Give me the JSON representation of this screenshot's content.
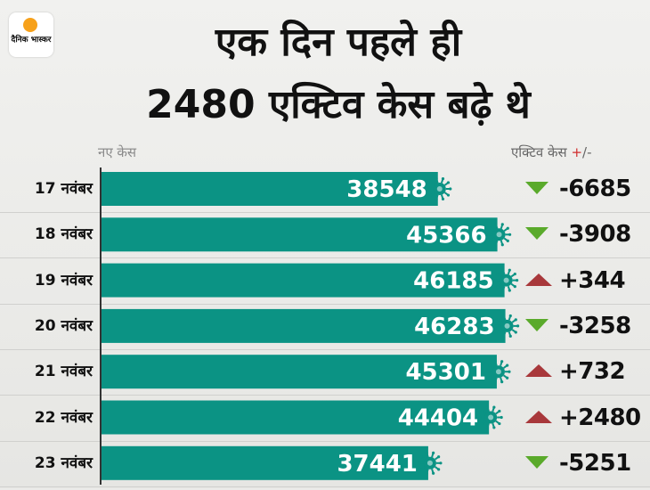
{
  "logo": {
    "text": "दैनिक भास्कर"
  },
  "title_lines": [
    "एक दिन पहले ही",
    "2480 एक्टिव केस बढ़े थे"
  ],
  "header": {
    "left": "नए केस",
    "right": "एक्टिव केस",
    "right_plus": "+",
    "right_sep": "/",
    "right_minus": "-"
  },
  "colors": {
    "bar": "#0b9384",
    "up": "#a8383b",
    "down": "#5aaa2b"
  },
  "chart_data": {
    "type": "bar",
    "orientation": "horizontal",
    "categories": [
      "17 नवंबर",
      "18 नवंबर",
      "19 नवंबर",
      "20 नवंबर",
      "21 नवंबर",
      "22 नवंबर",
      "23 नवंबर"
    ],
    "series": [
      {
        "name": "नए केस",
        "values": [
          38548,
          45366,
          46185,
          46283,
          45301,
          44404,
          37441
        ]
      }
    ],
    "active_change": {
      "name": "एक्टिव केस +/-",
      "values": [
        "-6685",
        "-3908",
        "+344",
        "-3258",
        "+732",
        "+2480",
        "-5251"
      ],
      "direction": [
        "down",
        "down",
        "up",
        "down",
        "up",
        "up",
        "down"
      ]
    }
  }
}
